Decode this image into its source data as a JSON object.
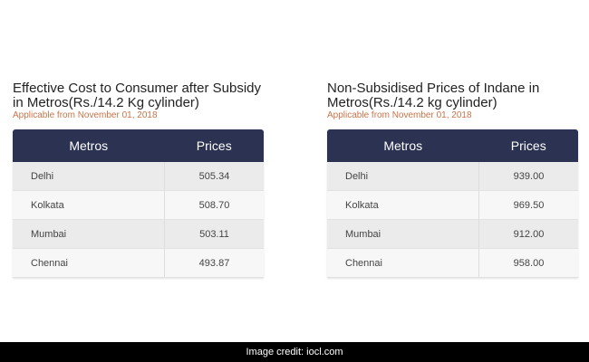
{
  "left": {
    "title": "Effective Cost to Consumer after Subsidy in Metros(Rs./14.2 Kg cylinder)",
    "subtitle": "Applicable from November 01, 2018",
    "headers": [
      "Metros",
      "Prices"
    ],
    "rows": [
      {
        "city": "Delhi",
        "price": "505.34"
      },
      {
        "city": "Kolkata",
        "price": "508.70"
      },
      {
        "city": "Mumbai",
        "price": "503.11"
      },
      {
        "city": "Chennai",
        "price": "493.87"
      }
    ]
  },
  "right": {
    "title": "Non-Subsidised Prices of Indane in Metros(Rs./14.2 kg cylinder)",
    "subtitle": "Applicable from November 01, 2018",
    "headers": [
      "Metros",
      "Prices"
    ],
    "rows": [
      {
        "city": "Delhi",
        "price": "939.00"
      },
      {
        "city": "Kolkata",
        "price": "969.50"
      },
      {
        "city": "Mumbai",
        "price": "912.00"
      },
      {
        "city": "Chennai",
        "price": "958.00"
      }
    ]
  },
  "footer": {
    "credit": "Image credit: iocl.com"
  },
  "colors": {
    "header_bg": "#2b3252",
    "subtitle": "#c9744a"
  }
}
